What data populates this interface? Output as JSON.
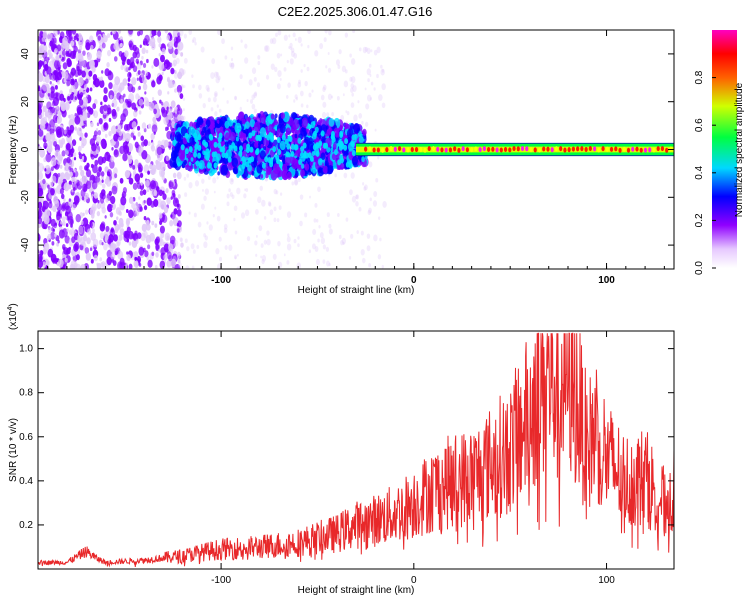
{
  "title": "C2E2.2025.306.01.47.G16",
  "chart_data": [
    {
      "type": "heatmap",
      "xlabel": "Height of straight line (km)",
      "ylabel": "Frequency (Hz)",
      "xlim": [
        -195,
        135
      ],
      "ylim": [
        -50,
        50
      ],
      "x_ticks": [
        -100,
        0,
        100
      ],
      "x_tick_labels": [
        "-100",
        "0",
        "100"
      ],
      "y_ticks": [
        -40,
        -20,
        0,
        20,
        40
      ],
      "y_tick_labels": [
        "-40",
        "-20",
        "0",
        "20",
        "40"
      ],
      "colorbar": {
        "label": "Normalized spectral amplitude",
        "range": [
          0,
          1
        ],
        "ticks": [
          0.0,
          0.2,
          0.4,
          0.6,
          0.8
        ],
        "tick_labels": [
          "0.0",
          "0.2",
          "0.4",
          "0.6",
          "0.8"
        ],
        "colormap": [
          "#ffffff",
          "#e0c8f8",
          "#8000ff",
          "#0000ff",
          "#00e0ff",
          "#00ff00",
          "#ffff00",
          "#ff0000",
          "#ff00ff"
        ]
      },
      "features": [
        {
          "x_range": [
            -195,
            -125
          ],
          "freq_range": [
            -50,
            50
          ],
          "amplitude": [
            0.1,
            0.3
          ],
          "description": "scattered purple speckle"
        },
        {
          "x_range": [
            -125,
            -30
          ],
          "freq_range": [
            -10,
            12
          ],
          "amplitude": [
            0.2,
            0.6
          ],
          "description": "blue/cyan band"
        },
        {
          "x_range": [
            -30,
            135
          ],
          "freq_range": [
            -2,
            2
          ],
          "amplitude": [
            0.5,
            1.0
          ],
          "description": "narrow band at 0 Hz"
        }
      ]
    },
    {
      "type": "line",
      "xlabel": "Height of straight line (km)",
      "ylabel": "SNR (10 * v/v)",
      "y_multiplier_label": "(x10",
      "y_multiplier_exp": "4",
      "y_multiplier_close": ")",
      "xlim": [
        -195,
        135
      ],
      "ylim": [
        0,
        1.08
      ],
      "x_ticks": [
        -100,
        0,
        100
      ],
      "x_tick_labels": [
        "-100",
        "0",
        "100"
      ],
      "y_ticks": [
        0.2,
        0.4,
        0.6,
        0.8,
        1.0
      ],
      "y_tick_labels": [
        "0.2",
        "0.4",
        "0.6",
        "0.8",
        "1.0"
      ],
      "color": "#e8282a",
      "series": [
        {
          "name": "SNR",
          "x": [
            -195,
            -180,
            -170,
            -165,
            -160,
            -140,
            -120,
            -100,
            -80,
            -60,
            -40,
            -30,
            -20,
            -10,
            0,
            10,
            20,
            30,
            40,
            50,
            60,
            65,
            70,
            75,
            80,
            85,
            90,
            95,
            100,
            110,
            120,
            130,
            135
          ],
          "y": [
            0.03,
            0.03,
            0.08,
            0.05,
            0.03,
            0.04,
            0.06,
            0.09,
            0.1,
            0.12,
            0.16,
            0.2,
            0.22,
            0.25,
            0.3,
            0.36,
            0.4,
            0.42,
            0.48,
            0.55,
            0.7,
            0.85,
            0.88,
            0.82,
            0.9,
            0.75,
            0.55,
            0.65,
            0.5,
            0.4,
            0.42,
            0.3,
            0.35
          ]
        }
      ]
    }
  ]
}
